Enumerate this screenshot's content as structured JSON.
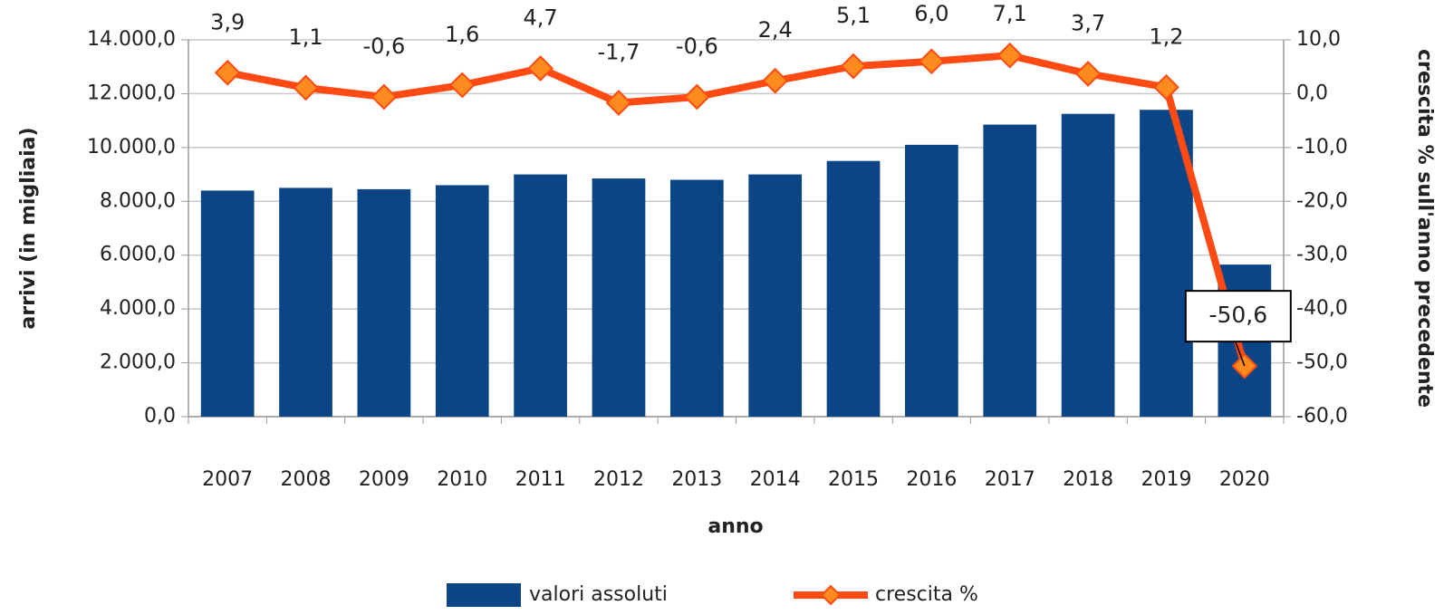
{
  "chart_data": {
    "type": "bar_line",
    "categories": [
      "2007",
      "2008",
      "2009",
      "2010",
      "2011",
      "2012",
      "2013",
      "2014",
      "2015",
      "2016",
      "2017",
      "2018",
      "2019",
      "2020"
    ],
    "series": [
      {
        "name": "valori assoluti",
        "type": "bar",
        "color": "#0b4586",
        "values": [
          8400,
          8500,
          8450,
          8600,
          9000,
          8850,
          8800,
          9000,
          9500,
          10100,
          10850,
          11250,
          11400,
          5650
        ]
      },
      {
        "name": "crescita %",
        "type": "line",
        "axis": "y2",
        "color": "#ff4a14",
        "marker_color": "#ff8a1e",
        "values": [
          3.9,
          1.1,
          -0.6,
          1.6,
          4.7,
          -1.7,
          -0.6,
          2.4,
          5.1,
          6.0,
          7.1,
          3.7,
          1.2,
          -50.6
        ],
        "value_labels": [
          "3,9",
          "1,1",
          "-0,6",
          "1,6",
          "4,7",
          "-1,7",
          "-0,6",
          "2,4",
          "5,1",
          "6,0",
          "7,1",
          "3,7",
          "1,2",
          "-50,6"
        ]
      }
    ],
    "xlabel": "anno",
    "ylabel": "arrivi (in migliaia)",
    "y2label": "crescita % sull'anno precedente",
    "ylim": [
      0,
      14000
    ],
    "yticks": [
      {
        "value": 0,
        "label": "0,0"
      },
      {
        "value": 2000,
        "label": "2.000,0"
      },
      {
        "value": 4000,
        "label": "4.000,0"
      },
      {
        "value": 6000,
        "label": "6.000,0"
      },
      {
        "value": 8000,
        "label": "8.000,0"
      },
      {
        "value": 10000,
        "label": "10.000,0"
      },
      {
        "value": 12000,
        "label": "12.000,0"
      },
      {
        "value": 14000,
        "label": "14.000,0"
      }
    ],
    "y2lim": [
      -60,
      10
    ],
    "y2ticks": [
      {
        "value": -60,
        "label": "-60,0"
      },
      {
        "value": -50,
        "label": "-50,0"
      },
      {
        "value": -40,
        "label": "-40,0"
      },
      {
        "value": -30,
        "label": "-30,0"
      },
      {
        "value": -20,
        "label": "-20,0"
      },
      {
        "value": -10,
        "label": "-10,0"
      },
      {
        "value": 0,
        "label": "0,0"
      },
      {
        "value": 10,
        "label": "10,0"
      }
    ],
    "grid": true,
    "legend": "bottom"
  }
}
